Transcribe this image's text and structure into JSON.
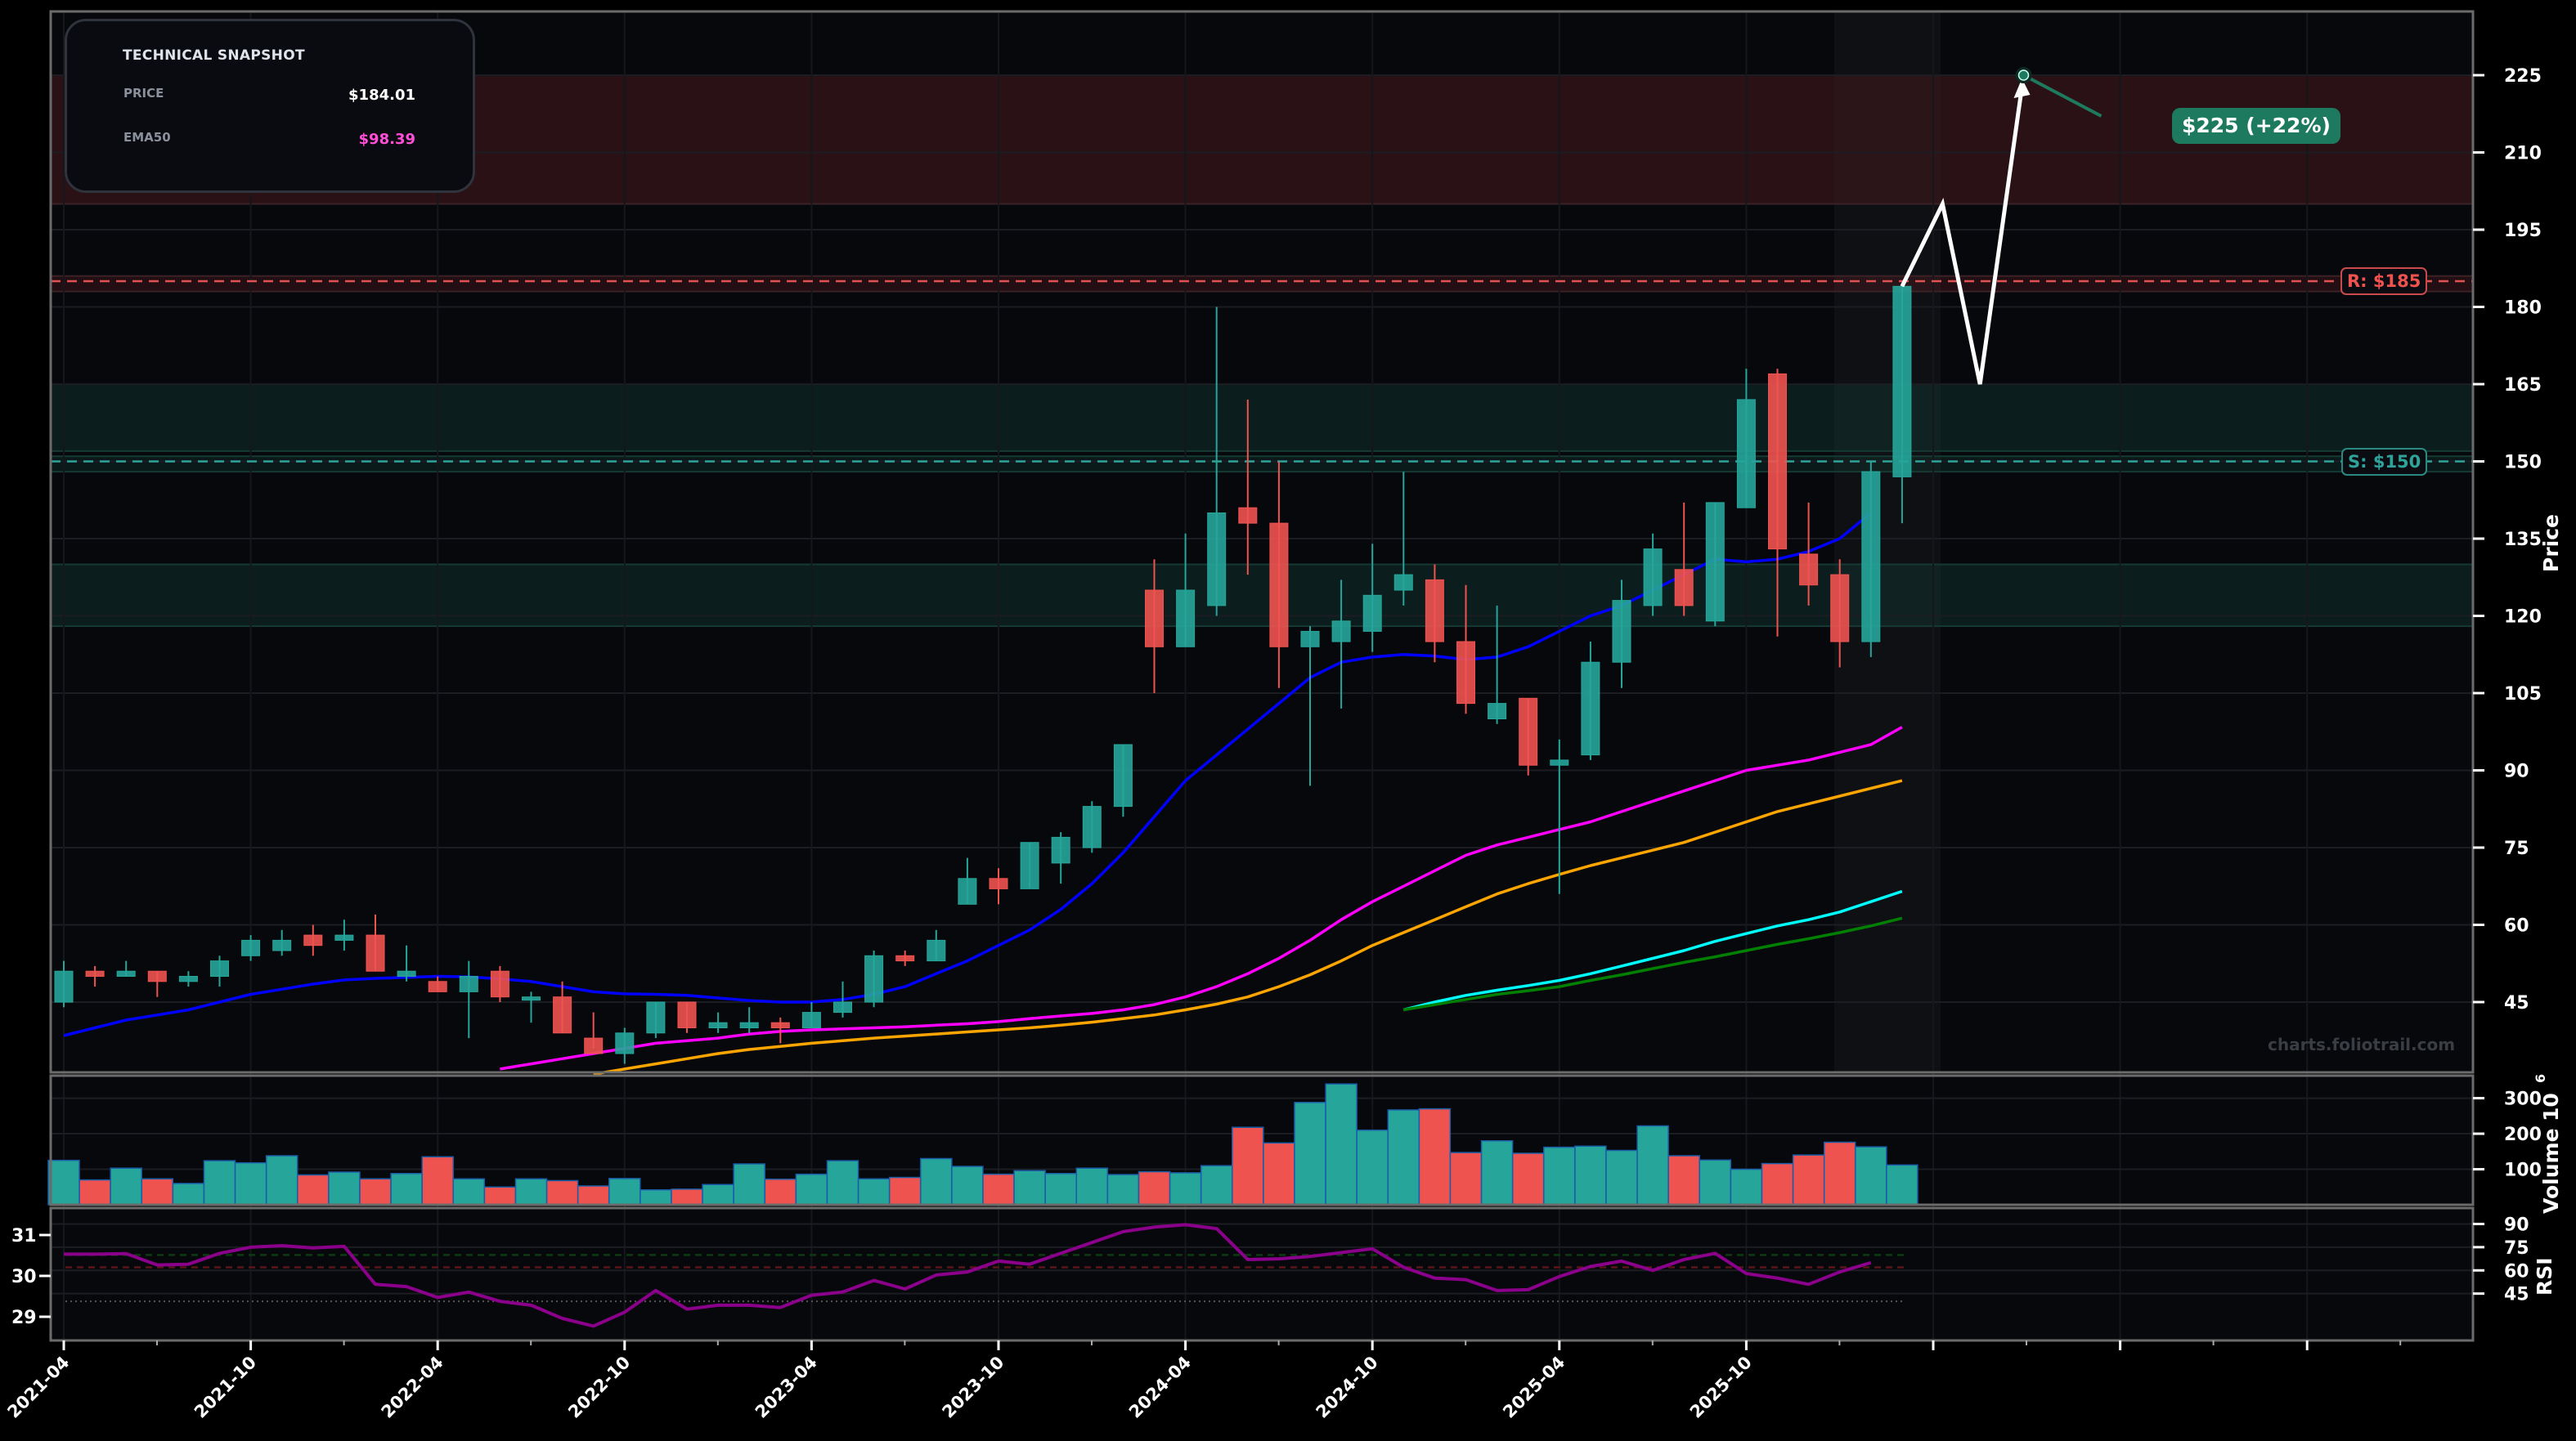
{
  "snapshot": {
    "title": "TECHNICAL SNAPSHOT",
    "rows": [
      {
        "label": "PRICE",
        "value": "$184.01",
        "color": "#ffffff"
      },
      {
        "label": "EMA50",
        "value": "$98.39",
        "color": "#ff4fd8"
      }
    ]
  },
  "annotations": {
    "resistance_label": "R: $185",
    "support_label": "S: $150",
    "target_label": "$225 (+22%)",
    "watermark": "charts.foliotrail.com"
  },
  "colors": {
    "up": "#26a69a",
    "down": "#ef5350",
    "ema_blue": "#0000ff",
    "ema_magenta": "#ff00ff",
    "ema_orange": "#ffa500",
    "ema_cyan": "#00ffff",
    "ema_green": "#008000",
    "rsi": "#8b008b",
    "resistance": "#e05252",
    "support": "#2fa39a",
    "target": "#1e7a5f"
  },
  "chart_data": {
    "type": "candlestick",
    "title": "",
    "xlabel": "",
    "ylabel": "Price",
    "ylim": [
      35,
      232
    ],
    "x_ticks": [
      "2021-04",
      "2021-10",
      "2022-04",
      "2022-10",
      "2023-04",
      "2023-10",
      "2024-04",
      "2024-10",
      "2025-04",
      "2025-10",
      "",
      "",
      ""
    ],
    "y_ticks": [
      45,
      60,
      75,
      90,
      105,
      120,
      135,
      150,
      165,
      180,
      195,
      210,
      225
    ],
    "candles": [
      {
        "date": "2021-04",
        "o": 45,
        "h": 53,
        "l": 44,
        "c": 51
      },
      {
        "date": "2021-05",
        "o": 51,
        "h": 52,
        "l": 48,
        "c": 50
      },
      {
        "date": "2021-06",
        "o": 50,
        "h": 53,
        "l": 50,
        "c": 51
      },
      {
        "date": "2021-07",
        "o": 51,
        "h": 51,
        "l": 46,
        "c": 49
      },
      {
        "date": "2021-08",
        "o": 49,
        "h": 51,
        "l": 48,
        "c": 50
      },
      {
        "date": "2021-09",
        "o": 50,
        "h": 54,
        "l": 48,
        "c": 53
      },
      {
        "date": "2021-10",
        "o": 54,
        "h": 58,
        "l": 53,
        "c": 57
      },
      {
        "date": "2021-11",
        "o": 55,
        "h": 59,
        "l": 54,
        "c": 57
      },
      {
        "date": "2021-12",
        "o": 58,
        "h": 60,
        "l": 54,
        "c": 56
      },
      {
        "date": "2021-13",
        "o": 57,
        "h": 61,
        "l": 55,
        "c": 58
      },
      {
        "date": "2022-01",
        "o": 58,
        "h": 62,
        "l": 51,
        "c": 51
      },
      {
        "date": "2022-02",
        "o": 50,
        "h": 56,
        "l": 49,
        "c": 51
      },
      {
        "date": "2022-03",
        "o": 49,
        "h": 50,
        "l": 47,
        "c": 47
      },
      {
        "date": "2022-04",
        "o": 47,
        "h": 53,
        "l": 38,
        "c": 50
      },
      {
        "date": "2022-05",
        "o": 51,
        "h": 52,
        "l": 45,
        "c": 46
      },
      {
        "date": "2022-06",
        "o": 46,
        "h": 47,
        "l": 41,
        "c": 46
      },
      {
        "date": "2022-07",
        "o": 46,
        "h": 49,
        "l": 39,
        "c": 39
      },
      {
        "date": "2022-08",
        "o": 38,
        "h": 43,
        "l": 36,
        "c": 35
      },
      {
        "date": "2022-09",
        "o": 35,
        "h": 40,
        "l": 33,
        "c": 39
      },
      {
        "date": "2022-10",
        "o": 39,
        "h": 45,
        "l": 38,
        "c": 45
      },
      {
        "date": "2022-11",
        "o": 45,
        "h": 45,
        "l": 39,
        "c": 40
      },
      {
        "date": "2022-12",
        "o": 40,
        "h": 43,
        "l": 39,
        "c": 41
      },
      {
        "date": "2023-01",
        "o": 40,
        "h": 44,
        "l": 39,
        "c": 41
      },
      {
        "date": "2023-02",
        "o": 41,
        "h": 42,
        "l": 37,
        "c": 40
      },
      {
        "date": "2023-03",
        "o": 40,
        "h": 45,
        "l": 40,
        "c": 43
      },
      {
        "date": "2023-04",
        "o": 43,
        "h": 49,
        "l": 42,
        "c": 45
      },
      {
        "date": "2023-05",
        "o": 45,
        "h": 55,
        "l": 44,
        "c": 54
      },
      {
        "date": "2023-06",
        "o": 54,
        "h": 55,
        "l": 52,
        "c": 53
      },
      {
        "date": "2023-07",
        "o": 53,
        "h": 59,
        "l": 53,
        "c": 57
      },
      {
        "date": "2023-08",
        "o": 64,
        "h": 73,
        "l": 64,
        "c": 69
      },
      {
        "date": "2023-09",
        "o": 69,
        "h": 71,
        "l": 64,
        "c": 67
      },
      {
        "date": "2023-10",
        "o": 67,
        "h": 76,
        "l": 67,
        "c": 76
      },
      {
        "date": "2023-11",
        "o": 72,
        "h": 78,
        "l": 68,
        "c": 77
      },
      {
        "date": "2023-12",
        "o": 75,
        "h": 84,
        "l": 74,
        "c": 83
      },
      {
        "date": "2024-01",
        "o": 83,
        "h": 95,
        "l": 81,
        "c": 95
      },
      {
        "date": "2024-02",
        "o": 125,
        "h": 131,
        "l": 105,
        "c": 114
      },
      {
        "date": "2024-03",
        "o": 114,
        "h": 136,
        "l": 114,
        "c": 125
      },
      {
        "date": "2024-04",
        "o": 122,
        "h": 180,
        "l": 120,
        "c": 140
      },
      {
        "date": "2024-05",
        "o": 141,
        "h": 162,
        "l": 128,
        "c": 138
      },
      {
        "date": "2024-06",
        "o": 138,
        "h": 150,
        "l": 106,
        "c": 114
      },
      {
        "date": "2024-07",
        "o": 114,
        "h": 118,
        "l": 87,
        "c": 117
      },
      {
        "date": "2024-08",
        "o": 115,
        "h": 127,
        "l": 102,
        "c": 119
      },
      {
        "date": "2024-09",
        "o": 117,
        "h": 134,
        "l": 113,
        "c": 124
      },
      {
        "date": "2024-10",
        "o": 125,
        "h": 148,
        "l": 122,
        "c": 128
      },
      {
        "date": "2024-11",
        "o": 127,
        "h": 130,
        "l": 111,
        "c": 115
      },
      {
        "date": "2024-12",
        "o": 115,
        "h": 126,
        "l": 101,
        "c": 103
      },
      {
        "date": "2025-01",
        "o": 100,
        "h": 122,
        "l": 99,
        "c": 103
      },
      {
        "date": "2025-02",
        "o": 104,
        "h": 104,
        "l": 89,
        "c": 91
      },
      {
        "date": "2025-03",
        "o": 91,
        "h": 96,
        "l": 66,
        "c": 92
      },
      {
        "date": "2025-04",
        "o": 93,
        "h": 115,
        "l": 92,
        "c": 111
      },
      {
        "date": "2025-05",
        "o": 111,
        "h": 127,
        "l": 106,
        "c": 123
      },
      {
        "date": "2025-06",
        "o": 122,
        "h": 136,
        "l": 120,
        "c": 133
      },
      {
        "date": "2025-07",
        "o": 129,
        "h": 142,
        "l": 120,
        "c": 122
      },
      {
        "date": "2025-08",
        "o": 119,
        "h": 142,
        "l": 118,
        "c": 142
      },
      {
        "date": "2025-09",
        "o": 141,
        "h": 168,
        "l": 141,
        "c": 162
      },
      {
        "date": "2025-10",
        "o": 167,
        "h": 168,
        "l": 116,
        "c": 133
      },
      {
        "date": "2025-11",
        "o": 132,
        "h": 142,
        "l": 122,
        "c": 126
      },
      {
        "date": "2025-12",
        "o": 128,
        "h": 131,
        "l": 110,
        "c": 115
      },
      {
        "date": "2026-01",
        "o": 115,
        "h": 150,
        "l": 112,
        "c": 148
      },
      {
        "date": "2026-02",
        "o": 147,
        "h": 184,
        "l": 138,
        "c": 184
      }
    ],
    "ema_series": [
      {
        "name": "EMA-blue",
        "color": "#0000ff",
        "start": 0,
        "values": [
          38.5,
          40,
          41.5,
          42.5,
          43.5,
          45,
          46.5,
          47.5,
          48.5,
          49.3,
          49.6,
          49.8,
          50,
          49.9,
          49.5,
          49,
          48,
          47,
          46.6,
          46.5,
          46.3,
          45.8,
          45.3,
          45,
          45,
          45.5,
          46.5,
          48,
          50.5,
          53,
          56,
          59,
          63,
          68,
          74,
          81,
          88,
          93,
          98,
          103,
          108,
          111,
          112,
          112.5,
          112.2,
          111.5,
          112,
          114,
          117,
          120,
          122,
          125,
          128,
          131,
          130.5,
          131,
          132.5,
          135,
          140
        ]
      },
      {
        "name": "EMA-magenta (EMA50)",
        "color": "#ff00ff",
        "start": 0,
        "values": [
          null,
          null,
          null,
          null,
          32,
          33,
          34,
          35,
          36,
          37,
          37.5,
          38,
          38.8,
          39.3,
          39.6,
          39.8,
          40,
          40.2,
          40.5,
          40.8,
          41.2,
          41.8,
          42.3,
          42.8,
          43.5,
          44.5,
          46,
          48,
          50.5,
          53.5,
          57,
          61,
          64.5,
          67.5,
          70.5,
          73.5,
          75.5,
          77,
          78.5,
          80,
          82,
          84,
          86,
          88,
          90,
          91,
          92,
          93.5,
          95,
          98.4
        ]
      },
      {
        "name": "EMA-orange",
        "color": "#ffa500",
        "start": 0,
        "values": [
          null,
          null,
          null,
          null,
          null,
          31,
          32,
          33,
          34,
          35,
          35.8,
          36.4,
          37,
          37.5,
          38,
          38.4,
          38.8,
          39.2,
          39.6,
          40,
          40.5,
          41.1,
          41.8,
          42.5,
          43.5,
          44.6,
          46,
          48,
          50.3,
          53,
          56,
          58.5,
          61,
          63.5,
          66,
          68,
          69.8,
          71.5,
          73,
          74.5,
          76,
          78,
          80,
          82,
          83.5,
          85,
          86.5,
          88
        ]
      },
      {
        "name": "EMA-cyan",
        "color": "#00ffff",
        "start": 38,
        "values": [
          null,
          null,
          null,
          null,
          null,
          null,
          null,
          null,
          null,
          null,
          null,
          null,
          null,
          null,
          null,
          null,
          null,
          null,
          null,
          null,
          null,
          null,
          null,
          null,
          null,
          null,
          null,
          null,
          null,
          null,
          null,
          null,
          null,
          null,
          null,
          null,
          null,
          null,
          null,
          null,
          null,
          null,
          null,
          null,
          null,
          null,
          null,
          null,
          null,
          null,
          null,
          null,
          null,
          null,
          null,
          null,
          null,
          null,
          null
        ]
      },
      {
        "name": "EMA-green",
        "color": "#008000",
        "start": 38,
        "values": []
      }
    ],
    "long_emas": {
      "start_index": 43,
      "cyan": [
        43.5,
        45,
        46.3,
        47.3,
        48.2,
        49.2,
        50.5,
        52,
        53.5,
        55,
        56.8,
        58.3,
        59.8,
        61,
        62.5,
        64.5,
        66.5
      ],
      "green": [
        43.5,
        44.5,
        45.5,
        46.5,
        47.2,
        48,
        49.2,
        50.3,
        51.5,
        52.7,
        53.8,
        55,
        56.2,
        57.3,
        58.5,
        59.8,
        61.3
      ]
    },
    "levels": {
      "resistance": 185,
      "support": 150
    },
    "zones": [
      {
        "from": 200,
        "to": 225,
        "type": "resistance-zone"
      },
      {
        "from": 183,
        "to": 186,
        "type": "resistance-band"
      },
      {
        "from": 152,
        "to": 165,
        "type": "support-zone"
      },
      {
        "from": 148,
        "to": 151,
        "type": "support-band"
      },
      {
        "from": 118,
        "to": 130,
        "type": "support-zone"
      }
    ],
    "projection": {
      "points": [
        [
          59,
          184
        ],
        [
          60.3,
          200
        ],
        [
          61.5,
          165
        ],
        [
          62.9,
          225
        ]
      ],
      "target": 225,
      "target_label": "$225 (+22%)"
    },
    "volume": {
      "ylabel": "Volume",
      "unit_label": "10^6",
      "y_ticks": [
        100,
        200,
        300
      ],
      "values": [
        125,
        70,
        103,
        73,
        60,
        124,
        118,
        138,
        84,
        92,
        73,
        88,
        135,
        73,
        50,
        73,
        68,
        53,
        74,
        42,
        44,
        57,
        115,
        72,
        86,
        124,
        73,
        77,
        130,
        108,
        86,
        96,
        88,
        103,
        85,
        93,
        90,
        110,
        218,
        174,
        288,
        340,
        210,
        267,
        270,
        147,
        180,
        145,
        162,
        165,
        153,
        222,
        138,
        126,
        100,
        116,
        140,
        176,
        163,
        112,
        145,
        173,
        170
      ]
    },
    "rsi": {
      "ylabel": "RSI",
      "y_ticks_right": [
        45,
        60,
        75,
        90
      ],
      "y_ticks_left": [
        29,
        30,
        31
      ],
      "overbought": 70,
      "oversold": 30,
      "values": [
        70.5,
        70.5,
        70.8,
        63.5,
        64,
        71,
        75,
        76,
        74.5,
        75.5,
        51,
        49.5,
        42.5,
        46,
        40,
        37.5,
        29,
        24,
        33,
        47,
        35,
        37.5,
        37.5,
        36,
        44,
        46,
        53.5,
        48,
        57,
        59,
        66,
        64,
        71,
        78,
        85,
        88,
        89.5,
        87,
        67,
        67.5,
        69,
        71.5,
        74,
        62,
        55,
        54,
        47,
        47.5,
        56,
        62.5,
        66,
        60,
        67,
        71,
        58,
        55,
        51,
        59,
        65
      ]
    }
  },
  "axes": {
    "price_label": "Price",
    "volume_label": "Volume",
    "volume_exp": "6",
    "volume_base": "10",
    "rsi_label": "RSI"
  }
}
